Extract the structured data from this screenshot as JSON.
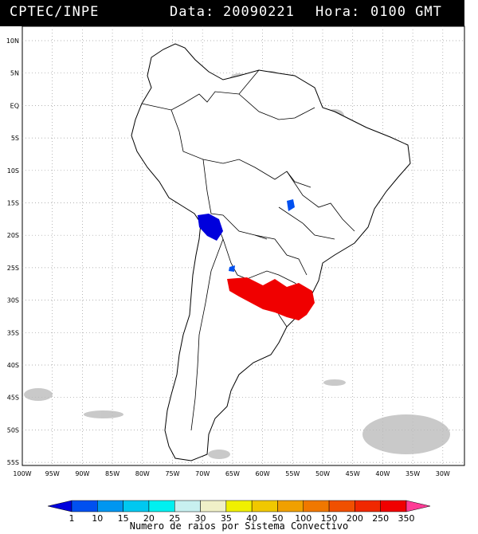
{
  "header": {
    "source": "CPTEC/INPE",
    "date_label": "Data:",
    "date_value": "20090221",
    "time_label": "Hora:",
    "time_value": "0100 GMT"
  },
  "lat_labels": [
    "10N",
    "5N",
    "EQ",
    "5S",
    "10S",
    "15S",
    "20S",
    "25S",
    "30S",
    "35S",
    "40S",
    "45S",
    "50S",
    "55S"
  ],
  "lon_labels": [
    "100W",
    "95W",
    "90W",
    "85W",
    "80W",
    "75W",
    "70W",
    "65W",
    "60W",
    "55W",
    "50W",
    "45W",
    "40W",
    "35W",
    "30W"
  ],
  "legend": {
    "values": [
      "1",
      "10",
      "15",
      "20",
      "25",
      "30",
      "35",
      "40",
      "50",
      "100",
      "150",
      "200",
      "250",
      "350"
    ],
    "colors": [
      "#0000dc",
      "#0050f0",
      "#0096f0",
      "#00c8f0",
      "#00f0f0",
      "#c8f0f0",
      "#f0f0c8",
      "#f0f000",
      "#f0c800",
      "#f0a000",
      "#f07800",
      "#f05000",
      "#f02800",
      "#f00000",
      "#ff3c96"
    ],
    "caption": "Numero de raios por Sistema Convectivo"
  }
}
